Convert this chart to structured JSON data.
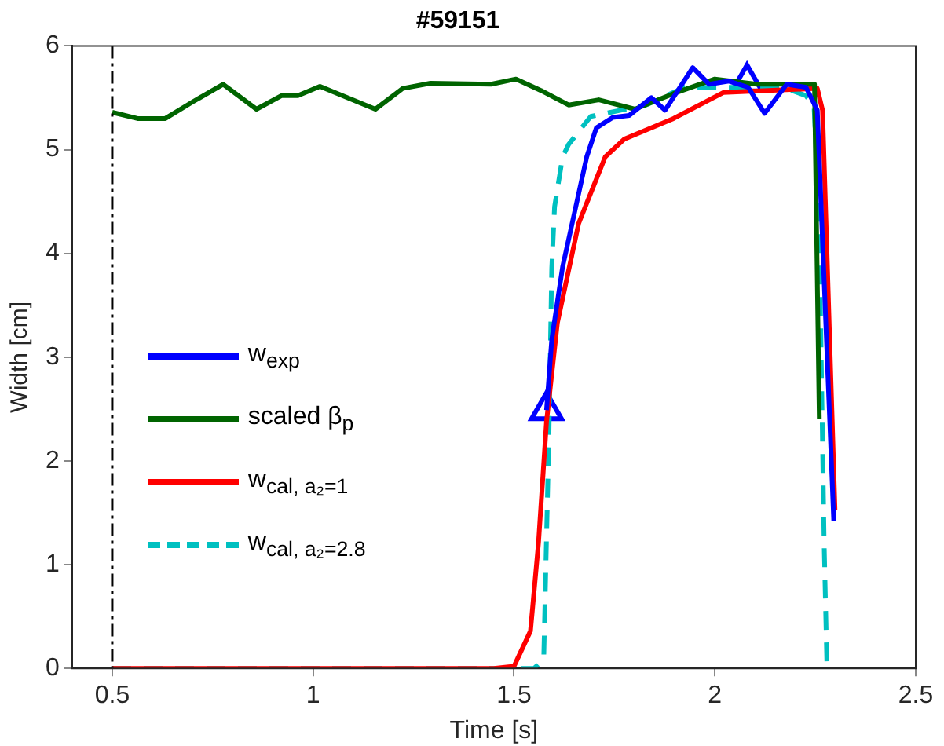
{
  "chart_data": {
    "type": "line",
    "title": "#59151",
    "xlabel": "Time [s]",
    "ylabel": "Width [cm]",
    "xlim": [
      0.4,
      2.5
    ],
    "xticks": [
      0.5,
      1,
      1.5,
      2,
      2.5
    ],
    "ylim": [
      0,
      6
    ],
    "yticks": [
      0,
      1,
      2,
      3,
      4,
      5,
      6
    ],
    "grid": false,
    "legend": "left",
    "marker": "none",
    "line_style": "solid",
    "ref_lines": [
      {
        "axis": "x",
        "value": 0.5,
        "color": "#000000",
        "line_style": "dashed"
      }
    ],
    "series": [
      {
        "name": "w$_{exp}$",
        "color": "#0000ff",
        "x": [
          1.581,
          1.594,
          1.621,
          1.681,
          1.705,
          1.746,
          1.787,
          1.842,
          1.876,
          1.945,
          1.986,
          2.035,
          2.083,
          2.124,
          2.179,
          2.227,
          2.255,
          2.296
        ],
        "values": [
          2.49,
          3.17,
          3.87,
          4.93,
          5.21,
          5.31,
          5.33,
          5.5,
          5.38,
          5.79,
          5.63,
          5.66,
          5.6,
          5.35,
          5.63,
          5.6,
          5.38,
          1.42
        ]
      },
      {
        "name": "scaled  β$_{p}$",
        "color": "#006400",
        "x": [
          0.5,
          0.563,
          0.632,
          0.7,
          0.776,
          0.859,
          0.921,
          0.962,
          1.017,
          1.086,
          1.155,
          1.223,
          1.292,
          1.443,
          1.505,
          1.567,
          1.636,
          1.711,
          1.801,
          1.897,
          2.0,
          2.104,
          2.248,
          2.26
        ],
        "values": [
          5.36,
          5.3,
          5.3,
          5.46,
          5.63,
          5.39,
          5.52,
          5.52,
          5.61,
          5.5,
          5.39,
          5.59,
          5.64,
          5.63,
          5.68,
          5.57,
          5.43,
          5.48,
          5.39,
          5.54,
          5.68,
          5.63,
          5.63,
          2.4
        ]
      },
      {
        "name": "w$_{cal, a₂=1}$",
        "color": "#ff0000",
        "x": [
          0.5,
          1.45,
          1.5,
          1.541,
          1.561,
          1.581,
          1.608,
          1.661,
          1.727,
          1.774,
          1.897,
          2.021,
          2.255,
          2.268,
          2.299
        ],
        "values": [
          0,
          0,
          0.02,
          0.36,
          1.21,
          2.38,
          3.33,
          4.29,
          4.93,
          5.1,
          5.3,
          5.55,
          5.59,
          5.38,
          1.53
        ]
      },
      {
        "name": "w$_{cal, a₂=2.8}$",
        "color": "#00c0c0",
        "line_style": "dashed",
        "x": [
          0.5,
          1.55,
          1.574,
          1.587,
          1.594,
          1.601,
          1.621,
          1.636,
          1.691,
          1.828,
          1.925,
          2.035,
          2.171,
          2.227,
          2.247,
          2.259,
          2.272,
          2.279
        ],
        "values": [
          0,
          0,
          0.09,
          2.27,
          3.86,
          4.45,
          4.93,
          5.05,
          5.32,
          5.43,
          5.6,
          5.6,
          5.6,
          5.52,
          5.41,
          4.4,
          1.21,
          0.02
        ]
      },
      {
        "type": "scatter",
        "color": "#0000ff",
        "marker": "triangle",
        "x": [
          1.581,
          2.08
        ],
        "values": [
          2.49,
          5.65
        ]
      }
    ]
  }
}
